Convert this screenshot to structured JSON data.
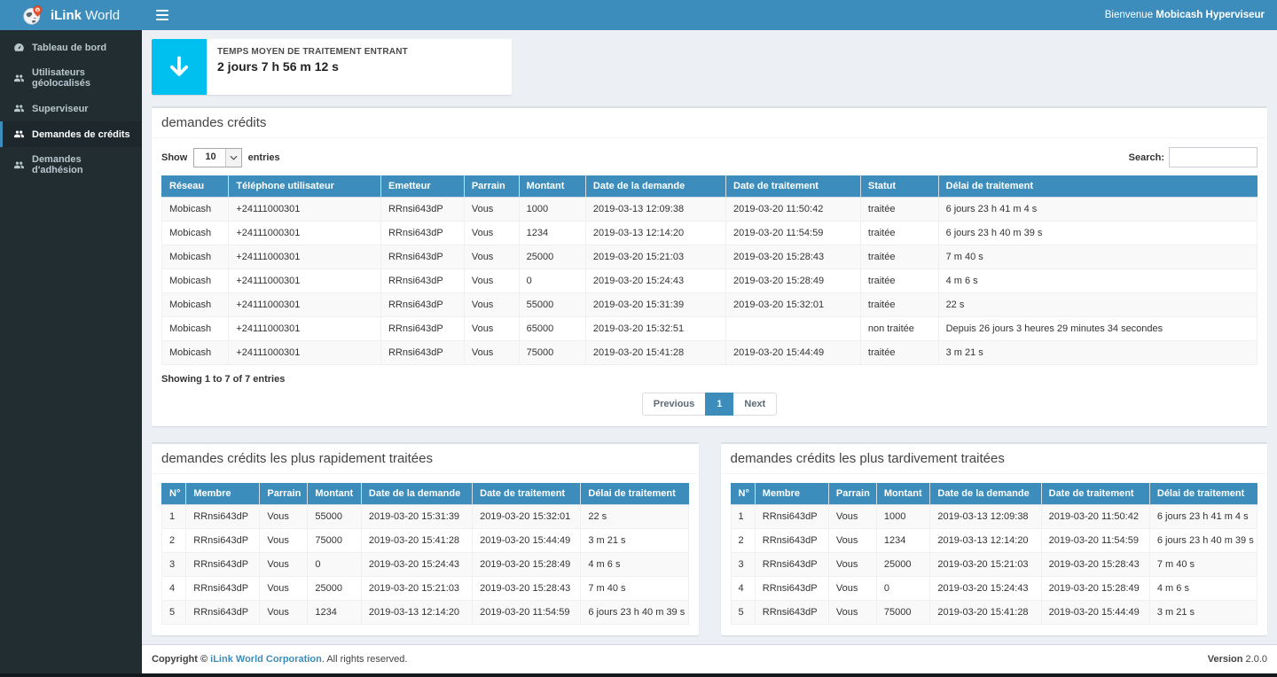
{
  "brand": {
    "name_bold": "iLink",
    "name_light": "World"
  },
  "topbar": {
    "welcome_prefix": "Bienvenue ",
    "welcome_user": "Mobicash Hyperviseur"
  },
  "sidebar": {
    "items": [
      {
        "label": "Tableau de bord",
        "icon": "dashboard-icon",
        "active": false
      },
      {
        "label": "Utilisateurs géolocalisés",
        "icon": "users-icon",
        "active": false
      },
      {
        "label": "Superviseur",
        "icon": "users-icon",
        "active": false
      },
      {
        "label": "Demandes de crédits",
        "icon": "users-icon",
        "active": true
      },
      {
        "label": "Demandes d'adhésion",
        "icon": "users-icon",
        "active": false
      }
    ]
  },
  "stat_card": {
    "title": "TEMPS MOYEN DE TRAITEMENT ENTRANT",
    "value": "2 jours 7 h 56 m 12 s",
    "icon": "arrow-down-icon",
    "color": "#00c0ef"
  },
  "credits_panel": {
    "title": "demandes crédits",
    "show_label": "Show",
    "page_length": "10",
    "entries_label": "entries",
    "search_label": "Search:",
    "search_value": "",
    "columns": [
      "Réseau",
      "Téléphone utilisateur",
      "Emetteur",
      "Parrain",
      "Montant",
      "Date de la demande",
      "Date de traitement",
      "Statut",
      "Délai de traitement"
    ],
    "rows": [
      [
        "Mobicash",
        "+24111000301",
        "RRnsi643dP",
        "Vous",
        "1000",
        "2019-03-13 12:09:38",
        "2019-03-20 11:50:42",
        "traitée",
        "6 jours 23 h 41 m 4 s"
      ],
      [
        "Mobicash",
        "+24111000301",
        "RRnsi643dP",
        "Vous",
        "1234",
        "2019-03-13 12:14:20",
        "2019-03-20 11:54:59",
        "traitée",
        "6 jours 23 h 40 m 39 s"
      ],
      [
        "Mobicash",
        "+24111000301",
        "RRnsi643dP",
        "Vous",
        "25000",
        "2019-03-20 15:21:03",
        "2019-03-20 15:28:43",
        "traitée",
        "7 m 40 s"
      ],
      [
        "Mobicash",
        "+24111000301",
        "RRnsi643dP",
        "Vous",
        "0",
        "2019-03-20 15:24:43",
        "2019-03-20 15:28:49",
        "traitée",
        "4 m 6 s"
      ],
      [
        "Mobicash",
        "+24111000301",
        "RRnsi643dP",
        "Vous",
        "55000",
        "2019-03-20 15:31:39",
        "2019-03-20 15:32:01",
        "traitée",
        "22 s"
      ],
      [
        "Mobicash",
        "+24111000301",
        "RRnsi643dP",
        "Vous",
        "65000",
        "2019-03-20 15:32:51",
        "",
        "non traitée",
        "Depuis 26 jours 3 heures 29 minutes 34 secondes"
      ],
      [
        "Mobicash",
        "+24111000301",
        "RRnsi643dP",
        "Vous",
        "75000",
        "2019-03-20 15:41:28",
        "2019-03-20 15:44:49",
        "traitée",
        "3 m 21 s"
      ]
    ],
    "info": "Showing 1 to 7 of 7 entries",
    "pagination": {
      "previous": "Previous",
      "current": "1",
      "next": "Next"
    }
  },
  "fastest_panel": {
    "title": "demandes crédits les plus rapidement traitées",
    "columns": [
      "N°",
      "Membre",
      "Parrain",
      "Montant",
      "Date de la demande",
      "Date de traitement",
      "Délai de traitement"
    ],
    "rows": [
      [
        "1",
        "RRnsi643dP",
        "Vous",
        "55000",
        "2019-03-20 15:31:39",
        "2019-03-20 15:32:01",
        "22 s"
      ],
      [
        "2",
        "RRnsi643dP",
        "Vous",
        "75000",
        "2019-03-20 15:41:28",
        "2019-03-20 15:44:49",
        "3 m 21 s"
      ],
      [
        "3",
        "RRnsi643dP",
        "Vous",
        "0",
        "2019-03-20 15:24:43",
        "2019-03-20 15:28:49",
        "4 m 6 s"
      ],
      [
        "4",
        "RRnsi643dP",
        "Vous",
        "25000",
        "2019-03-20 15:21:03",
        "2019-03-20 15:28:43",
        "7 m 40 s"
      ],
      [
        "5",
        "RRnsi643dP",
        "Vous",
        "1234",
        "2019-03-13 12:14:20",
        "2019-03-20 11:54:59",
        "6 jours 23 h 40 m 39 s"
      ]
    ]
  },
  "slowest_panel": {
    "title": "demandes crédits les plus tardivement traitées",
    "columns": [
      "N°",
      "Membre",
      "Parrain",
      "Montant",
      "Date de la demande",
      "Date de traitement",
      "Délai de traitement"
    ],
    "rows": [
      [
        "1",
        "RRnsi643dP",
        "Vous",
        "1000",
        "2019-03-13 12:09:38",
        "2019-03-20 11:50:42",
        "6 jours 23 h 41 m 4 s"
      ],
      [
        "2",
        "RRnsi643dP",
        "Vous",
        "1234",
        "2019-03-13 12:14:20",
        "2019-03-20 11:54:59",
        "6 jours 23 h 40 m 39 s"
      ],
      [
        "3",
        "RRnsi643dP",
        "Vous",
        "25000",
        "2019-03-20 15:21:03",
        "2019-03-20 15:28:43",
        "7 m 40 s"
      ],
      [
        "4",
        "RRnsi643dP",
        "Vous",
        "0",
        "2019-03-20 15:24:43",
        "2019-03-20 15:28:49",
        "4 m 6 s"
      ],
      [
        "5",
        "RRnsi643dP",
        "Vous",
        "75000",
        "2019-03-20 15:41:28",
        "2019-03-20 15:44:49",
        "3 m 21 s"
      ]
    ]
  },
  "footer": {
    "copyright_prefix": "Copyright © ",
    "company": "iLink World Corporation",
    "copyright_suffix": ". All rights reserved.",
    "version_label": "Version",
    "version": "2.0.0"
  },
  "colors": {
    "primary": "#3c8dbc",
    "aqua": "#00c0ef",
    "sidebar_bg": "#222d32",
    "content_bg": "#ecf0f5"
  }
}
